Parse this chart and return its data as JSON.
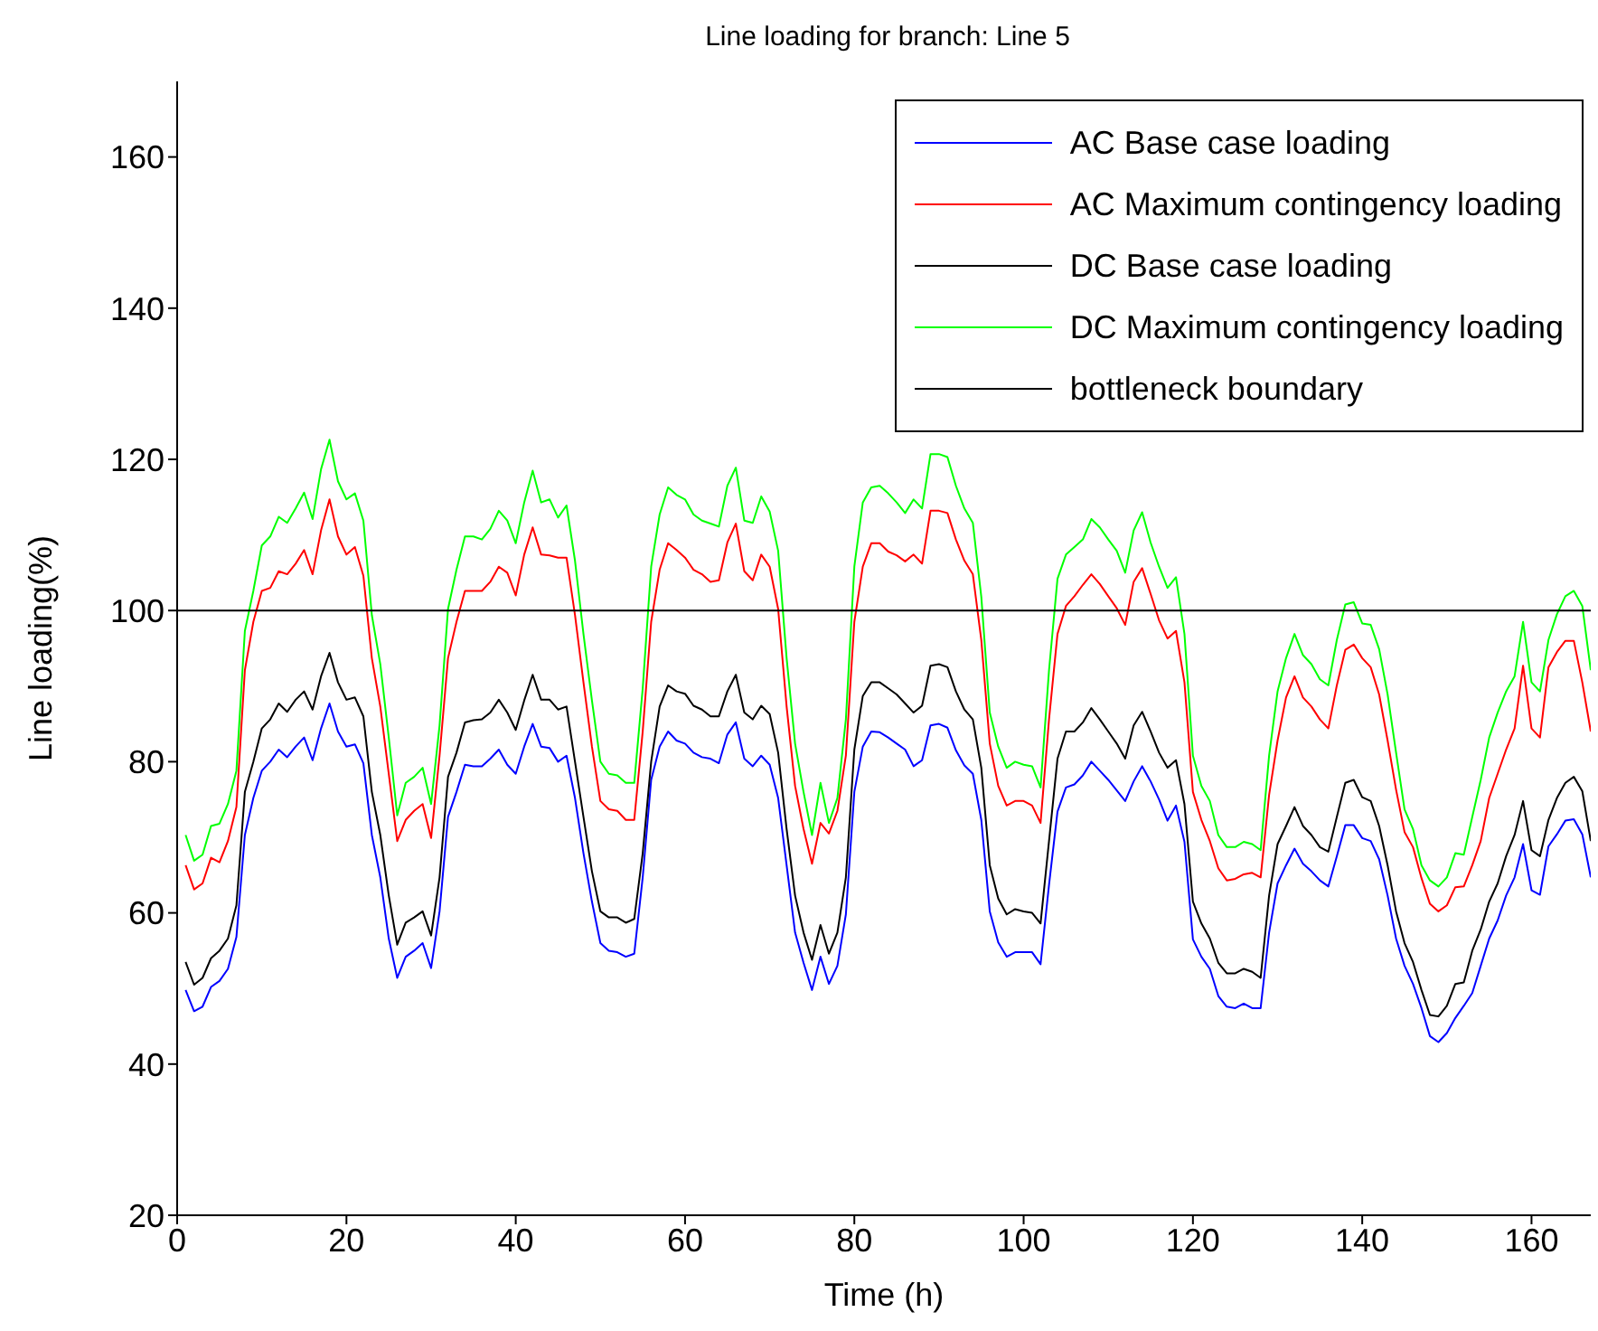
{
  "chart_data": {
    "type": "line",
    "title": "Line loading for branch: Line 5",
    "xlabel": "Time (h)",
    "ylabel": "Line loading(%)",
    "x": [
      1,
      2,
      3,
      4,
      5,
      6,
      7,
      8,
      9,
      10,
      11,
      12,
      13,
      14,
      15,
      16,
      17,
      18,
      19,
      20,
      21,
      22,
      23,
      24,
      25,
      26,
      27,
      28,
      29,
      30,
      31,
      32,
      33,
      34,
      35,
      36,
      37,
      38,
      39,
      40,
      41,
      42,
      43,
      44,
      45,
      46,
      47,
      48,
      49,
      50,
      51,
      52,
      53,
      54,
      55,
      56,
      57,
      58,
      59,
      60,
      61,
      62,
      63,
      64,
      65,
      66,
      67,
      68,
      69,
      70,
      71,
      72,
      73,
      74,
      75,
      76,
      77,
      78,
      79,
      80,
      81,
      82,
      83,
      84,
      85,
      86,
      87,
      88,
      89,
      90,
      91,
      92,
      93,
      94,
      95,
      96,
      97,
      98,
      99,
      100,
      101,
      102,
      103,
      104,
      105,
      106,
      107,
      108,
      109,
      110,
      111,
      112,
      113,
      114,
      115,
      116,
      117,
      118,
      119,
      120,
      121,
      122,
      123,
      124,
      125,
      126,
      127,
      128,
      129,
      130,
      131,
      132,
      133,
      134,
      135,
      136,
      137,
      138,
      139,
      140,
      141,
      142,
      143,
      144,
      145,
      146,
      147,
      148,
      149,
      150,
      151,
      152,
      153,
      154,
      155,
      156,
      157,
      158,
      159,
      160,
      161,
      162,
      163,
      164,
      165,
      166,
      167
    ],
    "series": [
      {
        "name": "AC Base case loading",
        "color": "#0000ff",
        "values": [
          49.8,
          47,
          47.6,
          50.2,
          51,
          52.6,
          56.8,
          70.3,
          75.2,
          78.8,
          80,
          81.6,
          80.6,
          82,
          83.2,
          80.2,
          84.4,
          87.7,
          84,
          82,
          82.3,
          79.8,
          70.3,
          64.7,
          56.6,
          51.4,
          54.2,
          55,
          56,
          52.7,
          60.2,
          72.7,
          76,
          79.6,
          79.4,
          79.4,
          80.4,
          81.6,
          79.6,
          78.4,
          82,
          85,
          82,
          81.8,
          80,
          80.8,
          75.2,
          67.9,
          61.5,
          56,
          55,
          54.8,
          54.2,
          54.6,
          64.7,
          77.6,
          82,
          84,
          82.8,
          82.4,
          81.2,
          80.6,
          80.4,
          79.8,
          83.6,
          85.2,
          80.4,
          79.4,
          80.8,
          79.6,
          75.2,
          66.3,
          57.4,
          53.4,
          49.8,
          54.2,
          50.6,
          53,
          59.8,
          76,
          82,
          84,
          83.9,
          83.2,
          82.4,
          81.6,
          79.4,
          80.2,
          84.8,
          85,
          84.5,
          81.5,
          79.5,
          78.4,
          72.3,
          60.2,
          56.1,
          54.2,
          54.8,
          54.8,
          54.8,
          53.2,
          63.7,
          73.4,
          76.6,
          77,
          78.2,
          80,
          78.8,
          77.6,
          76.2,
          74.8,
          77.4,
          79.4,
          77.4,
          75,
          72.2,
          74.2,
          69.4,
          56.5,
          54.2,
          52.6,
          49,
          47.6,
          47.4,
          48,
          47.4,
          47.4,
          57.4,
          63.9,
          66.3,
          68.5,
          66.5,
          65.5,
          64.3,
          63.5,
          67.5,
          71.6,
          71.6,
          69.9,
          69.5,
          67.1,
          62.3,
          56.6,
          53,
          50.6,
          47.4,
          43.7,
          42.9,
          44.1,
          46.1,
          47.7,
          49.4,
          53,
          56.6,
          59,
          62.3,
          64.7,
          69.1,
          63,
          62.4,
          68.8,
          70.4,
          72.2,
          72.4,
          70.4,
          64.7
        ]
      },
      {
        "name": "AC Maximum contingency loading",
        "color": "#ff0000",
        "values": [
          66.3,
          63.1,
          63.9,
          67.3,
          66.7,
          69.5,
          74,
          92.1,
          98.5,
          102.6,
          103,
          105.2,
          104.8,
          106.2,
          108,
          104.8,
          110.6,
          114.7,
          109.8,
          107.4,
          108.4,
          104.6,
          93.7,
          87.3,
          78.4,
          69.5,
          72.3,
          73.5,
          74.4,
          69.9,
          80.8,
          93.7,
          98.5,
          102.6,
          102.6,
          102.6,
          103.8,
          105.8,
          105,
          102,
          107.4,
          111,
          107.4,
          107.3,
          107,
          107,
          99.4,
          90.5,
          82,
          74.8,
          73.7,
          73.5,
          72.3,
          72.3,
          84,
          98.5,
          105.4,
          108.9,
          108,
          107,
          105.4,
          104.8,
          103.8,
          104,
          109,
          111.5,
          105.2,
          104,
          107.4,
          105.8,
          100.2,
          87.3,
          76.8,
          71.1,
          66.5,
          71.9,
          70.5,
          73.5,
          80.8,
          98.5,
          105.8,
          108.9,
          108.9,
          107.8,
          107.3,
          106.5,
          107.4,
          106.2,
          113.2,
          113.2,
          112.9,
          109.4,
          106.6,
          104.8,
          96.1,
          82.4,
          76.8,
          74.2,
          74.8,
          74.8,
          74.2,
          71.9,
          85.6,
          96.9,
          100.6,
          101.9,
          103.4,
          104.8,
          103.5,
          101.9,
          100.3,
          98.1,
          103.8,
          105.6,
          102.2,
          98.7,
          96.3,
          97.3,
          90.5,
          76,
          72.3,
          69.5,
          65.9,
          64.3,
          64.5,
          65.1,
          65.3,
          64.7,
          75.6,
          82.8,
          88.5,
          91.3,
          88.5,
          87.3,
          85.6,
          84.4,
          90.1,
          94.8,
          95.5,
          93.7,
          92.5,
          88.9,
          82.8,
          76.3,
          70.7,
          68.7,
          64.6,
          61.2,
          60.2,
          61,
          63.4,
          63.5,
          66.3,
          69.5,
          75.2,
          78.4,
          81.6,
          84.4,
          92.7,
          84.4,
          83.2,
          92.5,
          94.5,
          96,
          96,
          90.5,
          84
        ]
      },
      {
        "name": "DC Base case loading",
        "color": "#000000",
        "values": [
          53.5,
          50.5,
          51.4,
          54,
          55,
          56.6,
          61,
          76,
          80,
          84.4,
          85.6,
          87.7,
          86.6,
          88.2,
          89.3,
          86.9,
          91.3,
          94.4,
          90.5,
          88.2,
          88.5,
          86,
          76,
          70.3,
          62.3,
          55.8,
          58.7,
          59.4,
          60.2,
          57,
          64.7,
          78,
          81.2,
          85.2,
          85.5,
          85.6,
          86.5,
          88.2,
          86.5,
          84.2,
          88.1,
          91.5,
          88.2,
          88.2,
          86.9,
          87.3,
          80,
          72.7,
          65.5,
          60.2,
          59.4,
          59.4,
          58.7,
          59.2,
          67.9,
          80,
          87.3,
          90.1,
          89.3,
          89,
          87.4,
          86.9,
          86,
          86,
          89.3,
          91.5,
          86.5,
          85.6,
          87.4,
          86.3,
          81.2,
          71.1,
          62.3,
          57.4,
          53.8,
          58.4,
          54.6,
          57.4,
          64.7,
          81.6,
          88.7,
          90.5,
          90.5,
          89.7,
          88.9,
          87.7,
          86.5,
          87.4,
          92.7,
          92.9,
          92.5,
          89.3,
          86.9,
          85.6,
          79.2,
          66.3,
          61.9,
          59.8,
          60.5,
          60.2,
          60,
          58.6,
          69.5,
          80.4,
          84,
          84,
          85.2,
          87.1,
          85.6,
          84,
          82.4,
          80.4,
          84.8,
          86.6,
          84,
          81.2,
          79.2,
          80.2,
          74.4,
          61.5,
          58.6,
          56.6,
          53.4,
          52,
          52,
          52.6,
          52.2,
          51.4,
          62.3,
          69.1,
          71.5,
          74,
          71.5,
          70.3,
          68.7,
          68.1,
          72.7,
          77.2,
          77.6,
          75.3,
          74.8,
          71.5,
          66.3,
          60.2,
          56,
          53.5,
          49.8,
          46.5,
          46.3,
          47.7,
          50.6,
          50.8,
          55,
          57.8,
          61.5,
          63.9,
          67.5,
          70.3,
          74.8,
          68.3,
          67.5,
          72.3,
          75.2,
          77.2,
          78,
          76.1,
          69.5
        ]
      },
      {
        "name": "DC Maximum contingency loading",
        "color": "#00ff00",
        "values": [
          70.3,
          66.9,
          67.7,
          71.5,
          71.8,
          74.4,
          78.8,
          97.3,
          102.6,
          108.6,
          109.8,
          112.4,
          111.6,
          113.5,
          115.6,
          112.1,
          118.7,
          122.6,
          117.1,
          114.7,
          115.5,
          111.9,
          99.4,
          92.9,
          83.2,
          72.9,
          77.2,
          78,
          79.2,
          74.4,
          84.8,
          100.2,
          105.4,
          109.8,
          109.8,
          109.4,
          110.8,
          113.2,
          111.9,
          108.9,
          114.3,
          118.5,
          114.3,
          114.7,
          112.3,
          113.9,
          106.6,
          96.9,
          88.1,
          80,
          78.4,
          78.2,
          77.2,
          77.2,
          89.7,
          105.8,
          112.7,
          116.3,
          115.3,
          114.7,
          112.7,
          111.9,
          111.5,
          111.1,
          116.5,
          118.9,
          111.9,
          111.6,
          115.1,
          113.1,
          107.9,
          93.7,
          82.4,
          76,
          70.3,
          77.2,
          71.9,
          75.2,
          85.6,
          105.8,
          114.3,
          116.3,
          116.5,
          115.5,
          114.3,
          112.9,
          114.7,
          113.5,
          120.7,
          120.7,
          120.3,
          116.5,
          113.5,
          111.6,
          101.8,
          86.5,
          82,
          79.2,
          80,
          79.6,
          79.4,
          76.6,
          92.1,
          104.2,
          107.4,
          108.4,
          109.4,
          112.1,
          111,
          109.4,
          107.9,
          105,
          110.6,
          113,
          109,
          105.8,
          103,
          104.4,
          96.9,
          80.8,
          76.8,
          74.8,
          70.3,
          68.7,
          68.7,
          69.4,
          69.1,
          68.3,
          80.8,
          89.3,
          93.7,
          96.9,
          94.1,
          92.9,
          90.9,
          90.1,
          96.1,
          100.8,
          101.1,
          98.3,
          98.1,
          94.9,
          88.9,
          81.2,
          73.7,
          71.1,
          66.3,
          64.3,
          63.5,
          64.7,
          67.9,
          67.7,
          72.7,
          77.6,
          83.2,
          86.5,
          89.3,
          91.3,
          98.5,
          90.5,
          89.3,
          96.1,
          99.5,
          101.9,
          102.6,
          100.6,
          92.1
        ]
      },
      {
        "name": "bottleneck boundary",
        "color": "#000000",
        "x": [
          0,
          167
        ],
        "values": [
          100,
          100
        ]
      }
    ],
    "xlim": [
      0,
      167
    ],
    "xticks": [
      0,
      20,
      40,
      60,
      80,
      100,
      120,
      140,
      160
    ],
    "ylim": [
      20,
      170
    ],
    "yticks": [
      20,
      40,
      60,
      80,
      100,
      120,
      140,
      160
    ],
    "grid": false,
    "legend": "top right",
    "marker": "none",
    "line_style": "solid"
  }
}
